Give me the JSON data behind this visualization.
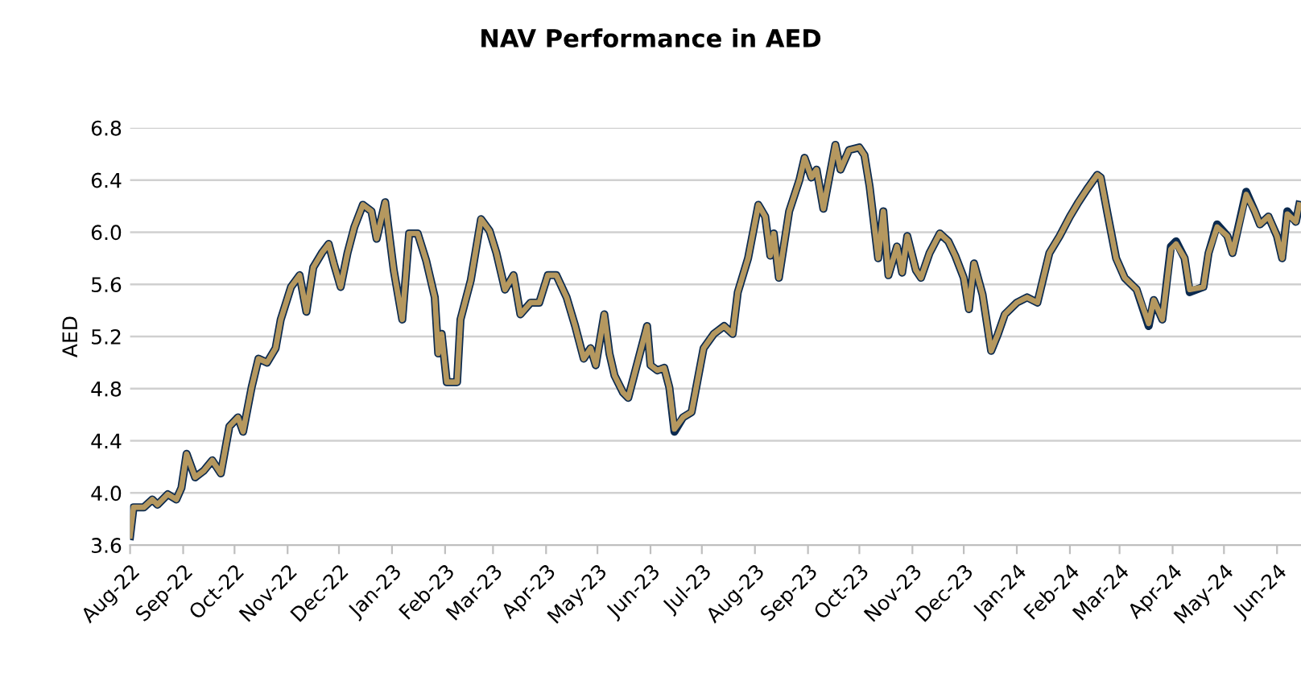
{
  "chart_data": {
    "type": "line",
    "title": "NAV Performance in AED",
    "ylabel": "AED",
    "x": [
      "2022-08-01",
      "2022-08-03",
      "2022-08-09",
      "2022-08-14",
      "2022-08-17",
      "2022-08-23",
      "2022-08-28",
      "2022-08-31",
      "2022-09-03",
      "2022-09-08",
      "2022-09-13",
      "2022-09-18",
      "2022-09-23",
      "2022-09-28",
      "2022-10-03",
      "2022-10-06",
      "2022-10-11",
      "2022-10-15",
      "2022-10-20",
      "2022-10-25",
      "2022-10-28",
      "2022-11-03",
      "2022-11-08",
      "2022-11-12",
      "2022-11-16",
      "2022-11-21",
      "2022-11-25",
      "2022-11-28",
      "2022-12-02",
      "2022-12-06",
      "2022-12-10",
      "2022-12-15",
      "2022-12-20",
      "2022-12-23",
      "2022-12-28",
      "2023-01-02",
      "2023-01-07",
      "2023-01-11",
      "2023-01-16",
      "2023-01-21",
      "2023-01-26",
      "2023-01-28",
      "2023-01-30",
      "2023-02-02",
      "2023-02-08",
      "2023-02-10",
      "2023-02-16",
      "2023-02-22",
      "2023-02-27",
      "2023-03-03",
      "2023-03-08",
      "2023-03-13",
      "2023-03-17",
      "2023-03-23",
      "2023-03-28",
      "2023-04-02",
      "2023-04-07",
      "2023-04-13",
      "2023-04-18",
      "2023-04-23",
      "2023-04-27",
      "2023-04-30",
      "2023-05-05",
      "2023-05-08",
      "2023-05-11",
      "2023-05-16",
      "2023-05-19",
      "2023-05-30",
      "2023-06-01",
      "2023-06-05",
      "2023-06-09",
      "2023-06-12",
      "2023-06-15",
      "2023-06-20",
      "2023-06-25",
      "2023-07-02",
      "2023-07-08",
      "2023-07-14",
      "2023-07-19",
      "2023-07-22",
      "2023-07-28",
      "2023-08-03",
      "2023-08-07",
      "2023-08-10",
      "2023-08-12",
      "2023-08-15",
      "2023-08-21",
      "2023-08-27",
      "2023-08-30",
      "2023-09-03",
      "2023-09-06",
      "2023-09-10",
      "2023-09-17",
      "2023-09-20",
      "2023-09-25",
      "2023-10-01",
      "2023-10-04",
      "2023-10-07",
      "2023-10-12",
      "2023-10-15",
      "2023-10-18",
      "2023-10-23",
      "2023-10-26",
      "2023-10-29",
      "2023-11-03",
      "2023-11-06",
      "2023-11-11",
      "2023-11-17",
      "2023-11-22",
      "2023-11-26",
      "2023-12-01",
      "2023-12-04",
      "2023-12-07",
      "2023-12-12",
      "2023-12-17",
      "2023-12-21",
      "2023-12-25",
      "2024-01-01",
      "2024-01-07",
      "2024-01-13",
      "2024-01-20",
      "2024-01-26",
      "2024-02-01",
      "2024-02-06",
      "2024-02-11",
      "2024-02-17",
      "2024-02-19",
      "2024-02-23",
      "2024-02-28",
      "2024-03-04",
      "2024-03-11",
      "2024-03-18",
      "2024-03-21",
      "2024-03-26",
      "2024-03-31",
      "2024-04-03",
      "2024-04-08",
      "2024-04-11",
      "2024-04-19",
      "2024-04-22",
      "2024-04-27",
      "2024-05-03",
      "2024-05-06",
      "2024-05-14",
      "2024-05-19",
      "2024-05-22",
      "2024-05-27",
      "2024-06-01",
      "2024-06-04",
      "2024-06-07",
      "2024-06-12",
      "2024-06-14"
    ],
    "series": [
      {
        "color": "#0b2a4f",
        "values": [
          3.67,
          3.89,
          3.89,
          3.95,
          3.91,
          3.99,
          3.95,
          4.04,
          4.3,
          4.12,
          4.17,
          4.25,
          4.15,
          4.51,
          4.58,
          4.47,
          4.81,
          5.03,
          5.0,
          5.11,
          5.33,
          5.58,
          5.67,
          5.39,
          5.73,
          5.84,
          5.91,
          5.76,
          5.58,
          5.84,
          6.04,
          6.21,
          6.16,
          5.95,
          6.23,
          5.71,
          5.33,
          5.99,
          5.99,
          5.78,
          5.5,
          5.07,
          5.22,
          4.85,
          4.85,
          5.33,
          5.63,
          6.1,
          6.01,
          5.84,
          5.56,
          5.67,
          5.37,
          5.46,
          5.46,
          5.67,
          5.67,
          5.5,
          5.28,
          5.03,
          5.11,
          4.98,
          5.37,
          5.07,
          4.9,
          4.77,
          4.73,
          5.28,
          4.98,
          4.94,
          4.96,
          4.81,
          4.47,
          4.58,
          4.62,
          5.11,
          5.22,
          5.28,
          5.22,
          5.54,
          5.8,
          6.21,
          6.12,
          5.82,
          5.99,
          5.65,
          6.16,
          6.4,
          6.57,
          6.42,
          6.48,
          6.18,
          6.67,
          6.48,
          6.63,
          6.65,
          6.59,
          6.35,
          5.8,
          6.16,
          5.67,
          5.89,
          5.69,
          5.97,
          5.71,
          5.65,
          5.84,
          5.99,
          5.93,
          5.82,
          5.65,
          5.41,
          5.76,
          5.52,
          5.09,
          5.22,
          5.37,
          5.46,
          5.5,
          5.46,
          5.84,
          5.97,
          6.12,
          6.23,
          6.33,
          6.44,
          6.42,
          6.14,
          5.8,
          5.65,
          5.56,
          5.28,
          5.48,
          5.33,
          5.89,
          5.93,
          5.8,
          5.54,
          5.58,
          5.84,
          6.06,
          5.97,
          5.84,
          6.31,
          6.16,
          6.06,
          6.12,
          5.97,
          5.8,
          6.16,
          6.08,
          6.21
        ]
      },
      {
        "color": "#b5985f",
        "values": [
          3.67,
          3.89,
          3.89,
          3.95,
          3.91,
          3.99,
          3.95,
          4.04,
          4.3,
          4.12,
          4.17,
          4.25,
          4.15,
          4.51,
          4.58,
          4.47,
          4.81,
          5.03,
          5.0,
          5.11,
          5.33,
          5.58,
          5.67,
          5.39,
          5.73,
          5.84,
          5.91,
          5.76,
          5.58,
          5.84,
          6.04,
          6.21,
          6.16,
          5.95,
          6.23,
          5.71,
          5.33,
          5.99,
          5.99,
          5.78,
          5.5,
          5.07,
          5.22,
          4.85,
          4.85,
          5.33,
          5.63,
          6.1,
          6.01,
          5.84,
          5.56,
          5.67,
          5.37,
          5.46,
          5.46,
          5.67,
          5.67,
          5.5,
          5.28,
          5.03,
          5.11,
          4.98,
          5.37,
          5.07,
          4.9,
          4.77,
          4.73,
          5.28,
          4.98,
          4.94,
          4.96,
          4.81,
          4.49,
          4.58,
          4.62,
          5.11,
          5.22,
          5.28,
          5.22,
          5.54,
          5.8,
          6.21,
          6.12,
          5.82,
          5.99,
          5.65,
          6.16,
          6.4,
          6.57,
          6.42,
          6.48,
          6.18,
          6.67,
          6.48,
          6.63,
          6.65,
          6.59,
          6.35,
          5.8,
          6.16,
          5.67,
          5.89,
          5.69,
          5.97,
          5.71,
          5.65,
          5.84,
          5.99,
          5.93,
          5.82,
          5.65,
          5.41,
          5.76,
          5.52,
          5.09,
          5.22,
          5.37,
          5.46,
          5.5,
          5.46,
          5.84,
          5.97,
          6.12,
          6.23,
          6.33,
          6.44,
          6.42,
          6.14,
          5.8,
          5.65,
          5.56,
          5.3,
          5.48,
          5.33,
          5.87,
          5.91,
          5.8,
          5.56,
          5.58,
          5.84,
          6.04,
          5.97,
          5.84,
          6.29,
          6.16,
          6.06,
          6.12,
          5.97,
          5.8,
          6.14,
          6.08,
          6.21
        ]
      }
    ],
    "xlim": [
      "2022-08-01",
      "2024-06-15"
    ],
    "xticks": [
      {
        "value": "2022-08-01",
        "label": "Aug-22"
      },
      {
        "value": "2022-09-01",
        "label": "Sep-22"
      },
      {
        "value": "2022-10-01",
        "label": "Oct-22"
      },
      {
        "value": "2022-11-01",
        "label": "Nov-22"
      },
      {
        "value": "2022-12-01",
        "label": "Dec-22"
      },
      {
        "value": "2023-01-01",
        "label": "Jan-23"
      },
      {
        "value": "2023-02-01",
        "label": "Feb-23"
      },
      {
        "value": "2023-03-01",
        "label": "Mar-23"
      },
      {
        "value": "2023-04-01",
        "label": "Apr-23"
      },
      {
        "value": "2023-05-01",
        "label": "May-23"
      },
      {
        "value": "2023-06-01",
        "label": "Jun-23"
      },
      {
        "value": "2023-07-01",
        "label": "Jul-23"
      },
      {
        "value": "2023-08-01",
        "label": "Aug-23"
      },
      {
        "value": "2023-09-01",
        "label": "Sep-23"
      },
      {
        "value": "2023-10-01",
        "label": "Oct-23"
      },
      {
        "value": "2023-11-01",
        "label": "Nov-23"
      },
      {
        "value": "2023-12-01",
        "label": "Dec-23"
      },
      {
        "value": "2024-01-01",
        "label": "Jan-24"
      },
      {
        "value": "2024-02-01",
        "label": "Feb-24"
      },
      {
        "value": "2024-03-01",
        "label": "Mar-24"
      },
      {
        "value": "2024-04-01",
        "label": "Apr-24"
      },
      {
        "value": "2024-05-01",
        "label": "May-24"
      },
      {
        "value": "2024-06-01",
        "label": "Jun-24"
      }
    ],
    "ylim": [
      3.6,
      6.8
    ],
    "yticks": [
      {
        "value": 3.6,
        "label": "3.6"
      },
      {
        "value": 4.0,
        "label": "4.0"
      },
      {
        "value": 4.4,
        "label": "4.4"
      },
      {
        "value": 4.8,
        "label": "4.8"
      },
      {
        "value": 5.2,
        "label": "5.2"
      },
      {
        "value": 5.6,
        "label": "5.6"
      },
      {
        "value": 6.0,
        "label": "6.0"
      },
      {
        "value": 6.4,
        "label": "6.4"
      },
      {
        "value": 6.8,
        "label": "6.8"
      }
    ],
    "grid": "y"
  }
}
